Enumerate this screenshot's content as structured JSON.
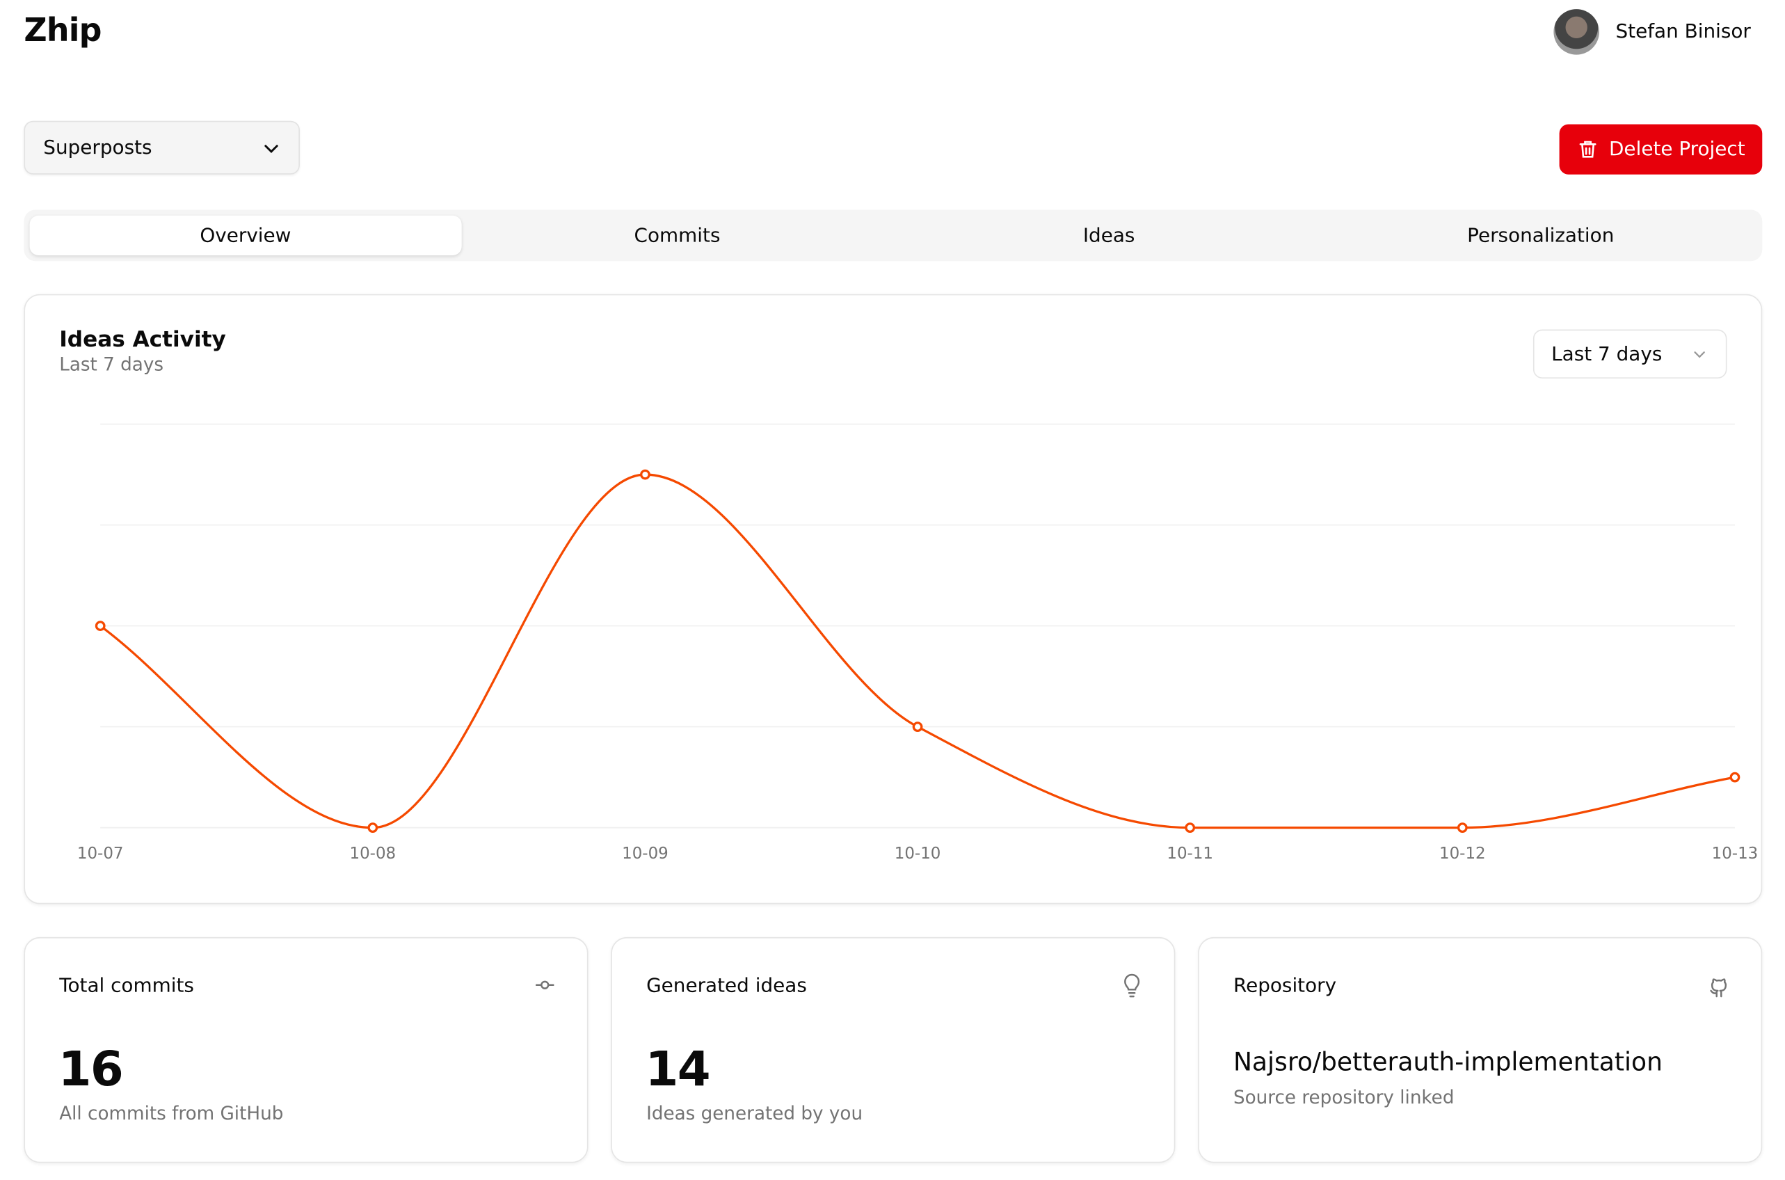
{
  "app": {
    "title": "Zhip"
  },
  "user": {
    "name": "Stefan Binisor"
  },
  "project_select": {
    "value": "Superposts"
  },
  "delete_button": {
    "label": "Delete Project"
  },
  "tabs": [
    {
      "label": "Overview",
      "active": true
    },
    {
      "label": "Commits"
    },
    {
      "label": "Ideas"
    },
    {
      "label": "Personalization"
    }
  ],
  "activity": {
    "title": "Ideas Activity",
    "subtitle": "Last 7 days",
    "range_select": "Last 7 days"
  },
  "colors": {
    "accent": "#f54900",
    "danger": "#e7000b"
  },
  "chart_data": {
    "type": "line",
    "title": "Ideas Activity",
    "categories": [
      "10-07",
      "10-08",
      "10-09",
      "10-10",
      "10-11",
      "10-12",
      "10-13"
    ],
    "series": [
      {
        "name": "Ideas",
        "values": [
          4,
          0,
          7,
          2,
          0,
          0,
          1
        ]
      }
    ],
    "ylim": [
      0,
      8
    ],
    "grid": true
  },
  "stats": {
    "commits": {
      "label": "Total commits",
      "value": "16",
      "desc": "All commits from GitHub",
      "icon": "git-commit-icon"
    },
    "ideas": {
      "label": "Generated ideas",
      "value": "14",
      "desc": "Ideas generated by you",
      "icon": "lightbulb-icon"
    },
    "repo": {
      "label": "Repository",
      "value": "Najsro/betterauth-implementation",
      "desc": "Source repository linked",
      "icon": "github-icon"
    }
  }
}
